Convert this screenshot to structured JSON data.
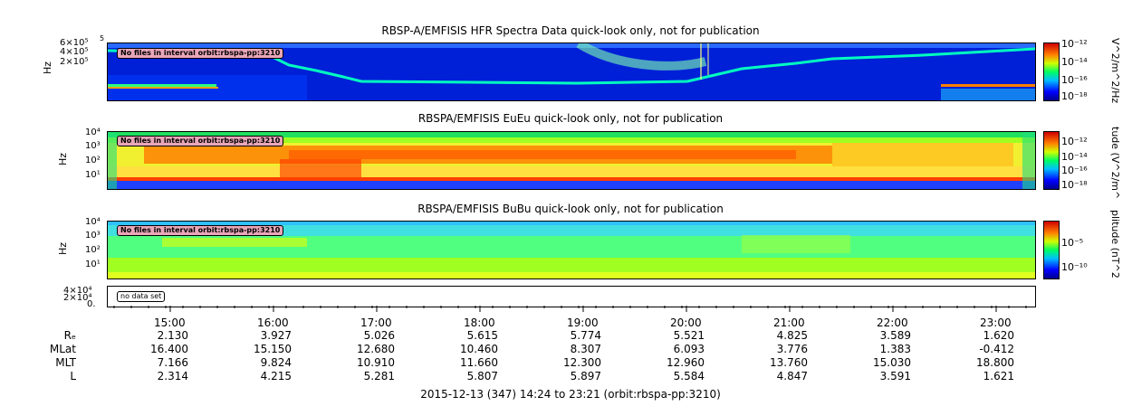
{
  "chart_data": [
    {
      "type": "heatmap",
      "title": "RBSP-A/EMFISIS  HFR Spectra Data quick-look only, not for publication",
      "ylabel": "Hz",
      "y_ticks": [
        "6×10⁵",
        "4×10⁵",
        "2×10⁵"
      ],
      "y_top_tick": "5",
      "annotation": "No files in interval orbit:rbspa-pp:3210",
      "colorbar_label": "V^2/m^2/Hz",
      "colorbar_ticks": [
        "10⁻¹²",
        "10⁻¹⁴",
        "10⁻¹⁶",
        "10⁻¹⁸"
      ]
    },
    {
      "type": "heatmap",
      "title": "RBSPA/EMFISIS  EuEu quick-look only, not for publication",
      "ylabel": "Hz",
      "y_ticks": [
        "10⁴",
        "10³",
        "10²",
        "10¹"
      ],
      "annotation": "No files in interval orbit:rbspa-pp:3210",
      "colorbar_label": "tude (V^2/m^",
      "colorbar_ticks": [
        "10⁻¹²",
        "10⁻¹⁴",
        "10⁻¹⁶",
        "10⁻¹⁸"
      ]
    },
    {
      "type": "heatmap",
      "title": "RBSPA/EMFISIS  BuBu quick-look only, not for publication",
      "ylabel": "Hz",
      "y_ticks": [
        "10⁴",
        "10³",
        "10²",
        "10¹"
      ],
      "annotation": "No files in interval orbit:rbspa-pp:3210",
      "colorbar_label": "plitude (nT^2",
      "colorbar_ticks": [
        "10⁻⁵",
        "10⁻¹⁰"
      ]
    },
    {
      "type": "line",
      "y_ticks": [
        "4×10⁴",
        "2×10⁴",
        "0."
      ],
      "annotation": "no data set"
    }
  ],
  "xaxis": {
    "times": [
      "15:00",
      "16:00",
      "17:00",
      "18:00",
      "19:00",
      "20:00",
      "21:00",
      "22:00",
      "23:00"
    ],
    "rows": [
      {
        "label": "Rₑ",
        "values": [
          "2.130",
          "3.927",
          "5.026",
          "5.615",
          "5.774",
          "5.521",
          "4.825",
          "3.589",
          "1.620"
        ]
      },
      {
        "label": "MLat",
        "values": [
          "16.400",
          "15.150",
          "12.680",
          "10.460",
          "8.307",
          "6.093",
          "3.776",
          "1.383",
          "-0.412"
        ]
      },
      {
        "label": "MLT",
        "values": [
          "7.166",
          "9.824",
          "10.910",
          "11.660",
          "12.300",
          "12.960",
          "13.760",
          "15.030",
          "18.800"
        ]
      },
      {
        "label": "L",
        "values": [
          "2.314",
          "4.215",
          "5.281",
          "5.807",
          "5.897",
          "5.584",
          "4.847",
          "3.591",
          "1.621"
        ]
      }
    ]
  },
  "footer": "2015-12-13 (347) 14:24 to 23:21 (orbit:rbspa-pp:3210)"
}
